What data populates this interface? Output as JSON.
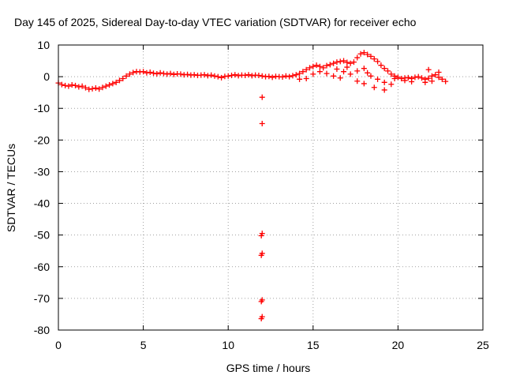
{
  "chart_data": {
    "type": "scatter",
    "title": "Day 145 of 2025, Sidereal Day-to-day VTEC variation (SDTVAR) for receiver echo",
    "xlabel": "GPS time / hours",
    "ylabel": "SDTVAR / TECUs",
    "xlim": [
      0,
      25
    ],
    "ylim": [
      -80,
      10
    ],
    "xticks": [
      "0",
      "5",
      "10",
      "15",
      "20",
      "25"
    ],
    "yticks": [
      "10",
      "0",
      "-10",
      "-20",
      "-30",
      "-40",
      "-50",
      "-60",
      "-70",
      "-80"
    ],
    "grid": true,
    "legend": "none",
    "series": [
      {
        "name": "SDTVAR",
        "color": "#ff0000",
        "marker": "plus",
        "points": [
          [
            0.0,
            -2.0
          ],
          [
            0.2,
            -2.5
          ],
          [
            0.4,
            -2.8
          ],
          [
            0.6,
            -3.0
          ],
          [
            0.8,
            -2.6
          ],
          [
            1.0,
            -2.8
          ],
          [
            1.2,
            -3.2
          ],
          [
            1.4,
            -3.0
          ],
          [
            1.6,
            -3.5
          ],
          [
            1.8,
            -4.0
          ],
          [
            2.0,
            -3.8
          ],
          [
            2.2,
            -3.6
          ],
          [
            2.4,
            -3.9
          ],
          [
            2.6,
            -3.4
          ],
          [
            2.8,
            -3.0
          ],
          [
            3.0,
            -2.6
          ],
          [
            3.2,
            -2.2
          ],
          [
            3.4,
            -1.8
          ],
          [
            3.6,
            -1.2
          ],
          [
            3.8,
            -0.6
          ],
          [
            4.0,
            0.2
          ],
          [
            4.2,
            0.8
          ],
          [
            4.4,
            1.3
          ],
          [
            4.6,
            1.6
          ],
          [
            4.8,
            1.5
          ],
          [
            5.0,
            1.6
          ],
          [
            5.2,
            1.2
          ],
          [
            5.4,
            1.4
          ],
          [
            5.6,
            1.1
          ],
          [
            5.8,
            0.9
          ],
          [
            6.0,
            1.2
          ],
          [
            6.2,
            1.0
          ],
          [
            6.4,
            0.8
          ],
          [
            6.6,
            1.0
          ],
          [
            6.8,
            0.7
          ],
          [
            7.0,
            0.9
          ],
          [
            7.2,
            0.8
          ],
          [
            7.4,
            0.6
          ],
          [
            7.6,
            0.7
          ],
          [
            7.8,
            0.5
          ],
          [
            8.0,
            0.6
          ],
          [
            8.2,
            0.4
          ],
          [
            8.4,
            0.5
          ],
          [
            8.6,
            0.6
          ],
          [
            8.8,
            0.3
          ],
          [
            9.0,
            0.5
          ],
          [
            9.2,
            0.2
          ],
          [
            9.4,
            0.0
          ],
          [
            9.6,
            -0.3
          ],
          [
            9.8,
            0.1
          ],
          [
            10.0,
            0.2
          ],
          [
            10.2,
            0.4
          ],
          [
            10.4,
            0.6
          ],
          [
            10.6,
            0.3
          ],
          [
            10.8,
            0.5
          ],
          [
            11.0,
            0.4
          ],
          [
            11.2,
            0.6
          ],
          [
            11.4,
            0.3
          ],
          [
            11.6,
            0.5
          ],
          [
            11.8,
            0.4
          ],
          [
            12.0,
            0.2
          ],
          [
            12.2,
            0.0
          ],
          [
            12.4,
            0.1
          ],
          [
            12.6,
            -0.2
          ],
          [
            12.8,
            0.1
          ],
          [
            13.0,
            0.0
          ],
          [
            13.2,
            -0.1
          ],
          [
            13.4,
            0.2
          ],
          [
            13.6,
            0.0
          ],
          [
            13.8,
            0.3
          ],
          [
            14.0,
            0.6
          ],
          [
            14.2,
            1.0
          ],
          [
            14.4,
            1.6
          ],
          [
            14.6,
            2.2
          ],
          [
            14.8,
            2.8
          ],
          [
            15.0,
            3.2
          ],
          [
            15.2,
            3.6
          ],
          [
            15.4,
            3.2
          ],
          [
            15.6,
            2.8
          ],
          [
            15.8,
            3.5
          ],
          [
            16.0,
            3.8
          ],
          [
            16.2,
            4.2
          ],
          [
            16.4,
            4.6
          ],
          [
            16.6,
            4.8
          ],
          [
            16.8,
            5.0
          ],
          [
            17.0,
            4.5
          ],
          [
            17.2,
            4.2
          ],
          [
            17.4,
            4.6
          ],
          [
            17.6,
            6.0
          ],
          [
            17.8,
            7.2
          ],
          [
            18.0,
            7.6
          ],
          [
            18.2,
            7.0
          ],
          [
            18.4,
            6.4
          ],
          [
            18.6,
            5.6
          ],
          [
            18.8,
            4.8
          ],
          [
            19.0,
            3.6
          ],
          [
            19.2,
            2.6
          ],
          [
            19.4,
            1.8
          ],
          [
            19.6,
            0.8
          ],
          [
            19.8,
            0.2
          ],
          [
            20.0,
            -0.2
          ],
          [
            20.2,
            -0.6
          ],
          [
            20.4,
            -0.4
          ],
          [
            20.6,
            -0.3
          ],
          [
            20.8,
            -0.6
          ],
          [
            21.0,
            -0.2
          ],
          [
            21.2,
            0.0
          ],
          [
            21.4,
            -0.4
          ],
          [
            21.6,
            -0.8
          ],
          [
            21.8,
            -0.5
          ],
          [
            22.0,
            0.2
          ],
          [
            22.2,
            0.6
          ],
          [
            22.4,
            -0.2
          ],
          [
            22.6,
            -0.8
          ],
          [
            22.8,
            -1.5
          ],
          [
            14.2,
            -0.8
          ],
          [
            14.6,
            -0.6
          ],
          [
            15.0,
            0.8
          ],
          [
            15.4,
            1.6
          ],
          [
            15.8,
            1.0
          ],
          [
            16.2,
            0.2
          ],
          [
            16.6,
            -0.4
          ],
          [
            17.0,
            3.0
          ],
          [
            16.4,
            2.4
          ],
          [
            16.8,
            1.6
          ],
          [
            17.2,
            0.8
          ],
          [
            17.6,
            1.8
          ],
          [
            18.0,
            2.6
          ],
          [
            18.2,
            1.2
          ],
          [
            18.4,
            0.2
          ],
          [
            18.8,
            -0.8
          ],
          [
            19.2,
            -1.8
          ],
          [
            19.6,
            -2.4
          ],
          [
            19.2,
            -4.2
          ],
          [
            18.6,
            -3.4
          ],
          [
            18.0,
            -2.2
          ],
          [
            17.6,
            -1.4
          ],
          [
            19.8,
            -0.6
          ],
          [
            20.4,
            -1.2
          ],
          [
            20.8,
            -1.6
          ],
          [
            21.6,
            -1.8
          ],
          [
            22.0,
            -1.4
          ],
          [
            21.8,
            2.2
          ],
          [
            22.4,
            1.4
          ],
          [
            12.0,
            -6.5
          ],
          [
            12.0,
            -14.8
          ],
          [
            12.0,
            -49.5
          ],
          [
            11.95,
            -50.2
          ],
          [
            12.0,
            -55.8
          ],
          [
            11.95,
            -56.4
          ],
          [
            12.0,
            -70.5
          ],
          [
            11.95,
            -71.0
          ],
          [
            12.0,
            -75.8
          ],
          [
            11.95,
            -76.4
          ]
        ]
      }
    ]
  }
}
